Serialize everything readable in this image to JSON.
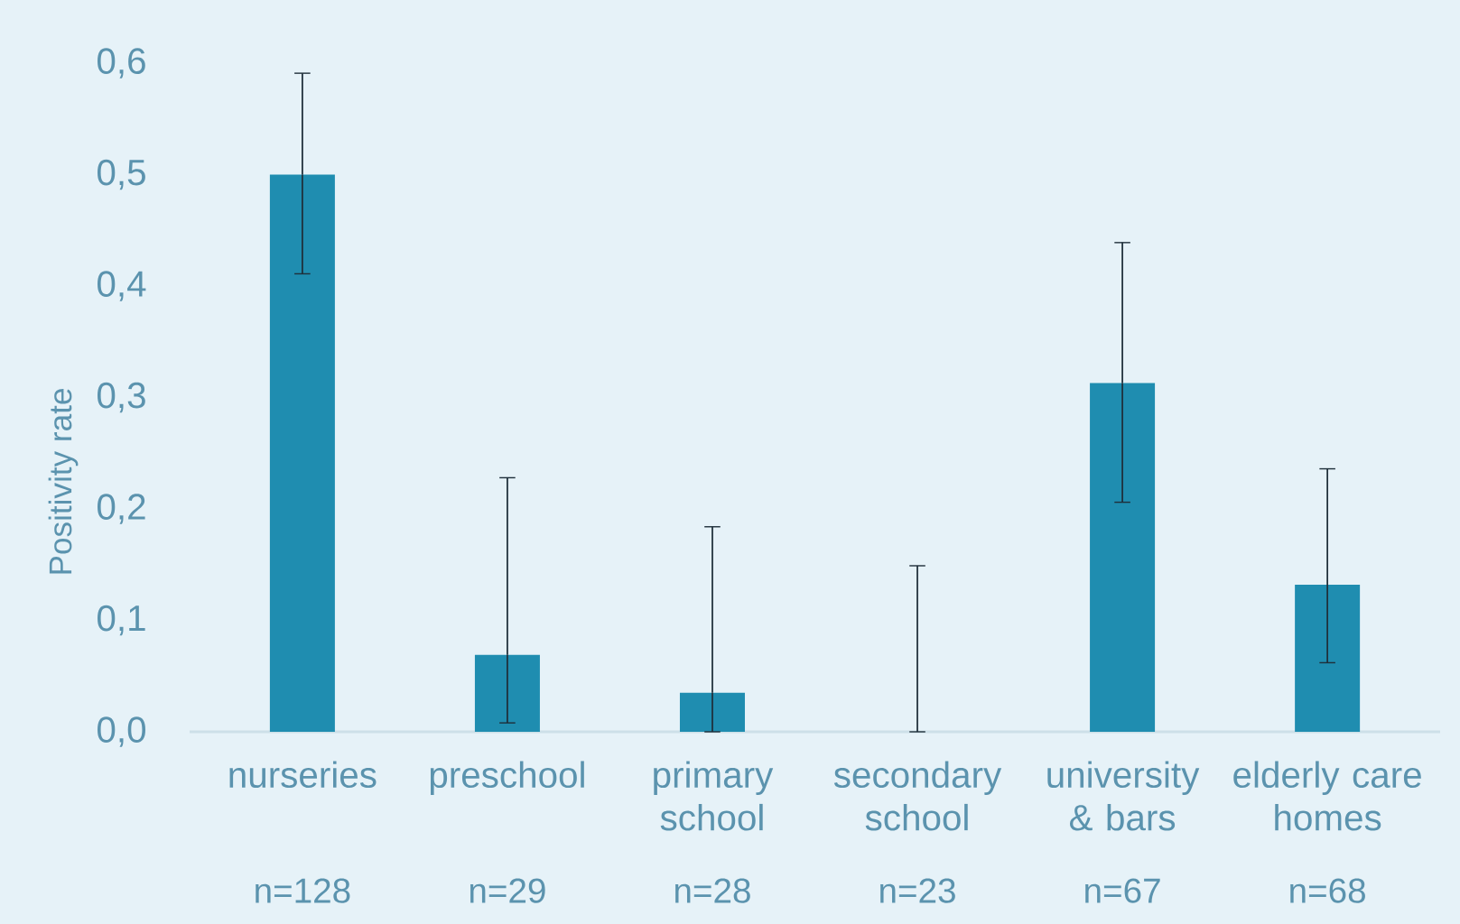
{
  "chart_data": {
    "type": "bar",
    "ylabel": "Positivity rate",
    "categories": [
      "nurseries",
      "preschool",
      "primary school",
      "secondary school",
      "university & bars",
      "elderly care homes"
    ],
    "values": [
      0.5,
      0.069,
      0.035,
      0,
      0.313,
      0.132
    ],
    "errors": [
      [
        0.411,
        0.591
      ],
      [
        0.008,
        0.228
      ],
      [
        0,
        0.184
      ],
      [
        0,
        0.149
      ],
      [
        0.206,
        0.439
      ],
      [
        0.062,
        0.236
      ]
    ],
    "color": "#1f8db0",
    "ylim": [
      0,
      0.6
    ],
    "yticks": [
      {
        "value": 0,
        "label": "0,0"
      },
      {
        "value": 0.1,
        "label": "0,1"
      },
      {
        "value": 0.2,
        "label": "0,2"
      },
      {
        "value": 0.3,
        "label": "0,3"
      },
      {
        "value": 0.4,
        "label": "0,4"
      },
      {
        "value": 0.5,
        "label": "0,5"
      },
      {
        "value": 0.6,
        "label": "0,6"
      }
    ],
    "annotations": [
      "n=128",
      "n=29",
      "n=28",
      "n=23",
      "n=67",
      "n=68"
    ]
  }
}
